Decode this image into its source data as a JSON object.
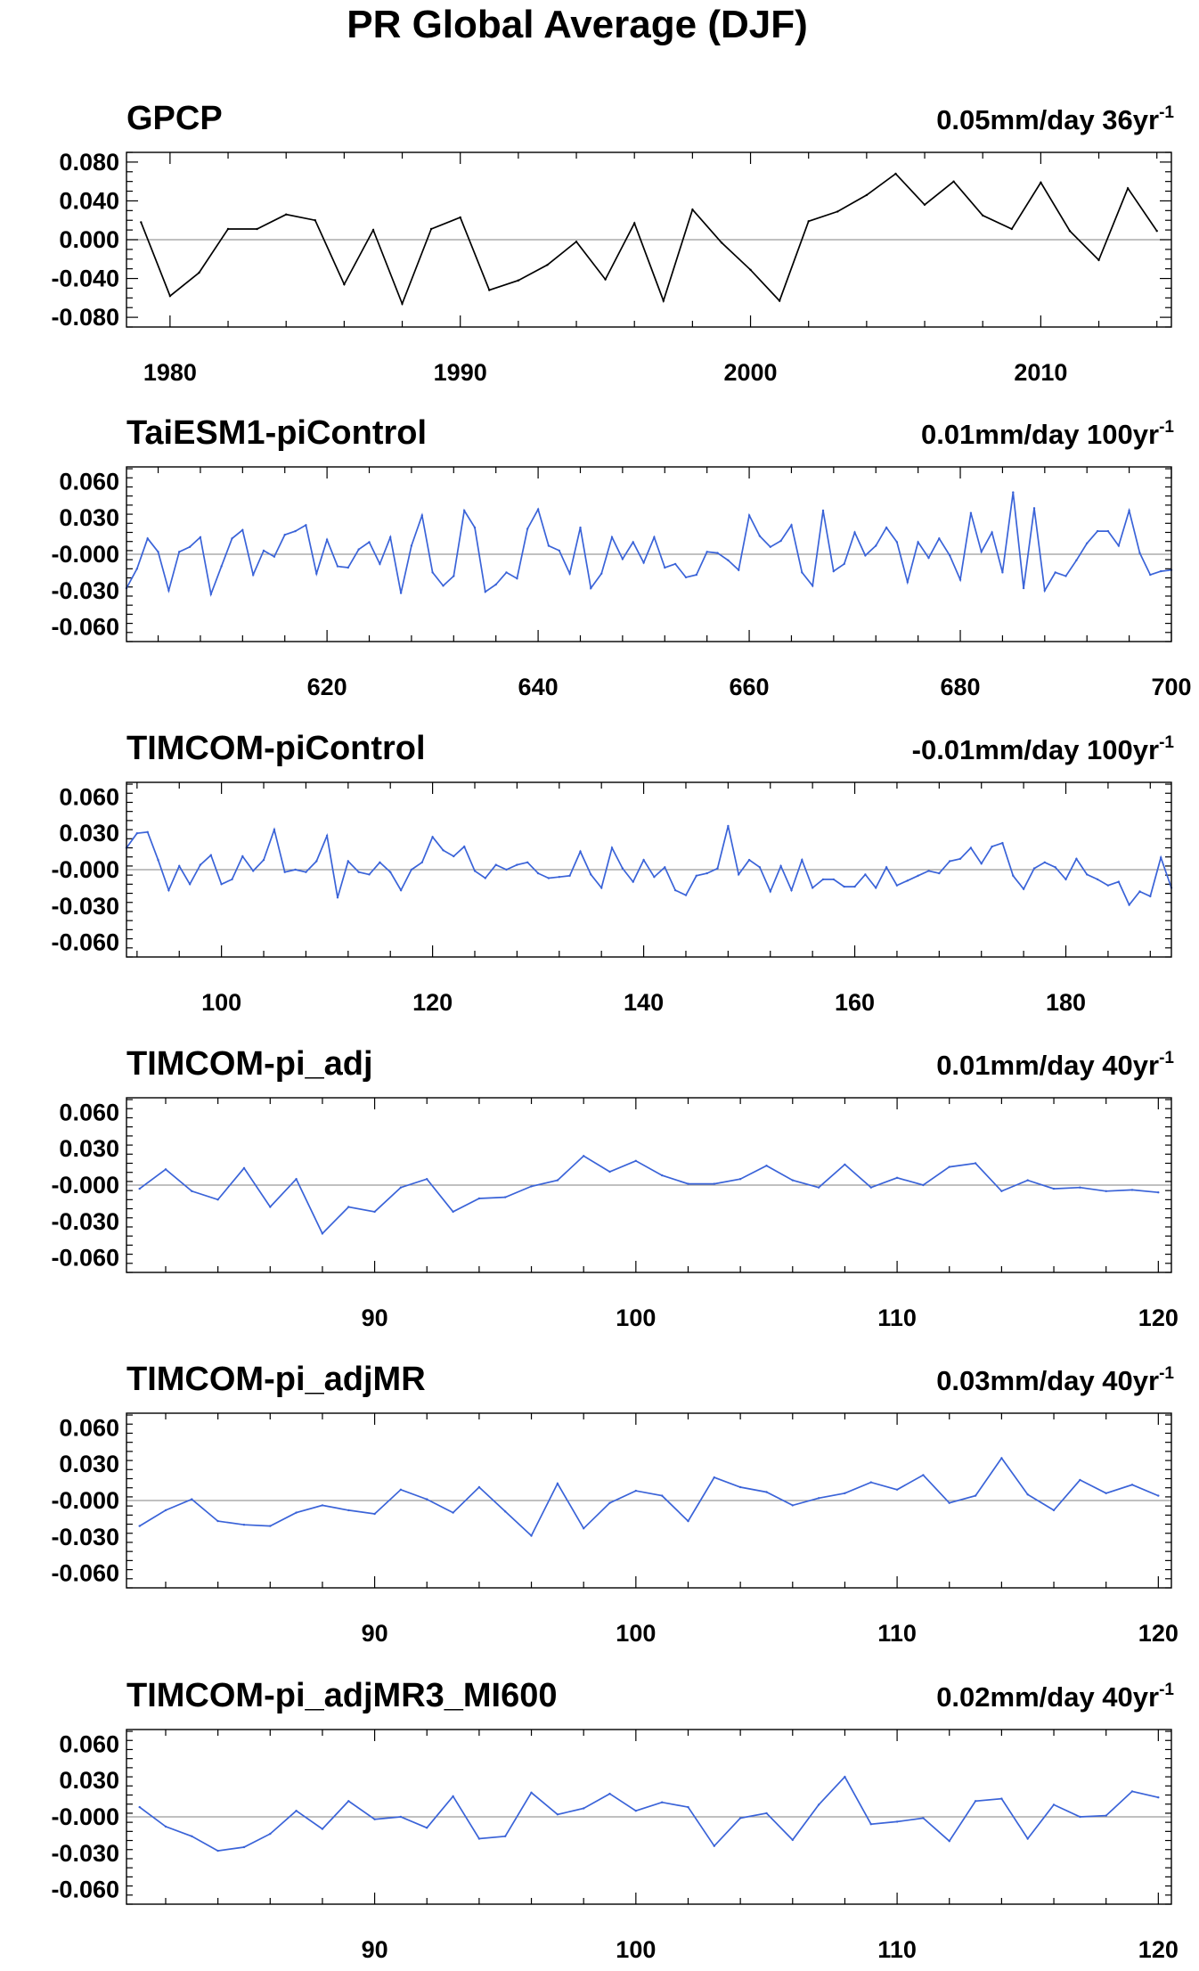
{
  "figure": {
    "title": "PR Global Average (DJF)"
  },
  "chart_data": [
    {
      "type": "line",
      "title": "GPCP",
      "trend_label": "0.05mm/day 36yr",
      "trend_exponent": "-1",
      "color": "#000000",
      "xlim": [
        1978.5,
        2014.5
      ],
      "ylim": [
        -0.09,
        0.09
      ],
      "xticks": [
        1980,
        1990,
        2000,
        2010
      ],
      "xtick_labels": [
        "1980",
        "1990",
        "2000",
        "2010"
      ],
      "yticks": [
        -0.08,
        -0.04,
        0.0,
        0.04,
        0.08
      ],
      "ytick_labels": [
        "-0.080",
        "-0.040",
        "0.000",
        "0.040",
        "0.080"
      ],
      "x_start": 1979,
      "x_step": 1,
      "values": [
        0.018,
        -0.058,
        -0.034,
        0.011,
        0.011,
        0.026,
        0.02,
        -0.046,
        0.01,
        -0.066,
        0.011,
        0.023,
        -0.052,
        -0.042,
        -0.026,
        -0.002,
        -0.041,
        0.017,
        -0.063,
        0.031,
        -0.003,
        -0.031,
        -0.063,
        0.019,
        0.029,
        0.046,
        0.068,
        0.036,
        0.06,
        0.025,
        0.011,
        0.059,
        0.009,
        -0.021,
        0.053,
        0.009
      ]
    },
    {
      "type": "line",
      "title": "TaiESM1-piControl",
      "trend_label": "0.01mm/day 100yr",
      "trend_exponent": "-1",
      "color": "#3a63d8",
      "xlim": [
        601,
        700
      ],
      "ylim": [
        -0.072,
        0.072
      ],
      "xticks": [
        620,
        640,
        660,
        680,
        700
      ],
      "xtick_labels": [
        "620",
        "640",
        "660",
        "680",
        "700"
      ],
      "yticks": [
        -0.06,
        -0.03,
        0.0,
        0.03,
        0.06
      ],
      "ytick_labels": [
        "-0.060",
        "-0.030",
        "-0.000",
        "0.030",
        "0.060"
      ],
      "x_start": 601,
      "x_step": 1,
      "values": [
        -0.028,
        -0.012,
        0.013,
        0.002,
        -0.03,
        0.002,
        0.006,
        0.014,
        -0.033,
        -0.01,
        0.013,
        0.02,
        -0.017,
        0.003,
        -0.002,
        0.016,
        0.019,
        0.024,
        -0.016,
        0.012,
        -0.01,
        -0.011,
        0.004,
        0.01,
        -0.008,
        0.014,
        -0.032,
        0.007,
        0.032,
        -0.015,
        -0.026,
        -0.018,
        0.036,
        0.022,
        -0.031,
        -0.025,
        -0.015,
        -0.02,
        0.021,
        0.037,
        0.007,
        0.003,
        -0.016,
        0.022,
        -0.028,
        -0.016,
        0.014,
        -0.004,
        0.01,
        -0.007,
        0.014,
        -0.011,
        -0.008,
        -0.019,
        -0.017,
        0.002,
        0.001,
        -0.005,
        -0.013,
        0.032,
        0.015,
        0.006,
        0.011,
        0.024,
        -0.015,
        -0.026,
        0.036,
        -0.014,
        -0.008,
        0.018,
        -0.001,
        0.007,
        0.022,
        0.01,
        -0.023,
        0.01,
        -0.003,
        0.013,
        -0.001,
        -0.021,
        0.034,
        0.002,
        0.018,
        -0.015,
        0.051,
        -0.028,
        0.038,
        -0.03,
        -0.015,
        -0.018,
        -0.005,
        0.009,
        0.019,
        0.019,
        0.007,
        0.036,
        0.001,
        -0.017,
        -0.014,
        -0.013
      ]
    },
    {
      "type": "line",
      "title": "TIMCOM-piControl",
      "trend_label": "-0.01mm/day 100yr",
      "trend_exponent": "-1",
      "color": "#3a63d8",
      "xlim": [
        91,
        190
      ],
      "ylim": [
        -0.072,
        0.072
      ],
      "xticks": [
        100,
        120,
        140,
        160,
        180
      ],
      "xtick_labels": [
        "100",
        "120",
        "140",
        "160",
        "180"
      ],
      "yticks": [
        -0.06,
        -0.03,
        0.0,
        0.03,
        0.06
      ],
      "ytick_labels": [
        "-0.060",
        "-0.030",
        "-0.000",
        "0.030",
        "0.060"
      ],
      "x_start": 91,
      "x_step": 1,
      "values": [
        0.018,
        0.03,
        0.031,
        0.008,
        -0.017,
        0.003,
        -0.012,
        0.004,
        0.012,
        -0.012,
        -0.008,
        0.011,
        -0.001,
        0.008,
        0.033,
        -0.002,
        0.0,
        -0.002,
        0.007,
        0.028,
        -0.023,
        0.007,
        -0.002,
        -0.004,
        0.006,
        -0.002,
        -0.017,
        0.0,
        0.006,
        0.027,
        0.016,
        0.011,
        0.019,
        -0.001,
        -0.007,
        0.004,
        0.0,
        0.004,
        0.006,
        -0.003,
        -0.007,
        -0.006,
        -0.005,
        0.015,
        -0.004,
        -0.015,
        0.018,
        0.001,
        -0.01,
        0.008,
        -0.006,
        0.002,
        -0.017,
        -0.021,
        -0.005,
        -0.003,
        0.001,
        0.036,
        -0.004,
        0.008,
        0.002,
        -0.018,
        0.003,
        -0.017,
        0.008,
        -0.015,
        -0.008,
        -0.008,
        -0.014,
        -0.014,
        -0.004,
        -0.015,
        0.002,
        -0.013,
        -0.009,
        -0.005,
        -0.001,
        -0.003,
        0.007,
        0.009,
        0.018,
        0.005,
        0.019,
        0.022,
        -0.005,
        -0.016,
        0.001,
        0.006,
        0.002,
        -0.008,
        0.009,
        -0.004,
        -0.008,
        -0.013,
        -0.01,
        -0.029,
        -0.018,
        -0.022,
        0.01,
        -0.015
      ]
    },
    {
      "type": "line",
      "title": "TIMCOM-pi_adj",
      "trend_label": "0.01mm/day 40yr",
      "trend_exponent": "-1",
      "color": "#3a63d8",
      "xlim": [
        80.5,
        120.5
      ],
      "ylim": [
        -0.072,
        0.072
      ],
      "xticks": [
        90,
        100,
        110,
        120
      ],
      "xtick_labels": [
        "90",
        "100",
        "110",
        "120"
      ],
      "yticks": [
        -0.06,
        -0.03,
        0.0,
        0.03,
        0.06
      ],
      "ytick_labels": [
        "-0.060",
        "-0.030",
        "-0.000",
        "0.030",
        "0.060"
      ],
      "x_start": 81,
      "x_step": 1,
      "values": [
        -0.003,
        0.013,
        -0.005,
        -0.012,
        0.014,
        -0.018,
        0.005,
        -0.04,
        -0.018,
        -0.022,
        -0.002,
        0.005,
        -0.022,
        -0.011,
        -0.01,
        -0.001,
        0.004,
        0.024,
        0.011,
        0.02,
        0.008,
        0.001,
        0.001,
        0.005,
        0.016,
        0.004,
        -0.002,
        0.017,
        -0.002,
        0.006,
        0.0,
        0.015,
        0.018,
        -0.005,
        0.004,
        -0.003,
        -0.002,
        -0.005,
        -0.004,
        -0.006
      ]
    },
    {
      "type": "line",
      "title": "TIMCOM-pi_adjMR",
      "trend_label": "0.03mm/day 40yr",
      "trend_exponent": "-1",
      "color": "#3a63d8",
      "xlim": [
        80.5,
        120.5
      ],
      "ylim": [
        -0.072,
        0.072
      ],
      "xticks": [
        90,
        100,
        110,
        120
      ],
      "xtick_labels": [
        "90",
        "100",
        "110",
        "120"
      ],
      "yticks": [
        -0.06,
        -0.03,
        0.0,
        0.03,
        0.06
      ],
      "ytick_labels": [
        "-0.060",
        "-0.030",
        "-0.000",
        "0.030",
        "0.060"
      ],
      "x_start": 81,
      "x_step": 1,
      "values": [
        -0.021,
        -0.008,
        0.001,
        -0.017,
        -0.02,
        -0.021,
        -0.01,
        -0.004,
        -0.008,
        -0.011,
        0.009,
        0.001,
        -0.01,
        0.011,
        -0.009,
        -0.029,
        0.014,
        -0.023,
        -0.002,
        0.008,
        0.004,
        -0.017,
        0.019,
        0.011,
        0.007,
        -0.004,
        0.002,
        0.006,
        0.015,
        0.009,
        0.021,
        -0.002,
        0.004,
        0.035,
        0.005,
        -0.008,
        0.017,
        0.006,
        0.013,
        0.004
      ]
    },
    {
      "type": "line",
      "title": "TIMCOM-pi_adjMR3_MI600",
      "trend_label": "0.02mm/day 40yr",
      "trend_exponent": "-1",
      "color": "#3a63d8",
      "xlim": [
        80.5,
        120.5
      ],
      "ylim": [
        -0.072,
        0.072
      ],
      "xticks": [
        90,
        100,
        110,
        120
      ],
      "xtick_labels": [
        "90",
        "100",
        "110",
        "120"
      ],
      "yticks": [
        -0.06,
        -0.03,
        0.0,
        0.03,
        0.06
      ],
      "ytick_labels": [
        "-0.060",
        "-0.030",
        "-0.000",
        "0.030",
        "0.060"
      ],
      "x_start": 81,
      "x_step": 1,
      "values": [
        0.008,
        -0.008,
        -0.016,
        -0.028,
        -0.025,
        -0.014,
        0.005,
        -0.01,
        0.013,
        -0.002,
        0.0,
        -0.009,
        0.017,
        -0.018,
        -0.016,
        0.02,
        0.002,
        0.007,
        0.019,
        0.005,
        0.012,
        0.008,
        -0.024,
        -0.001,
        0.003,
        -0.019,
        0.01,
        0.033,
        -0.006,
        -0.004,
        -0.001,
        -0.02,
        0.013,
        0.015,
        -0.018,
        0.01,
        0.0,
        0.001,
        0.021,
        0.016
      ]
    }
  ]
}
